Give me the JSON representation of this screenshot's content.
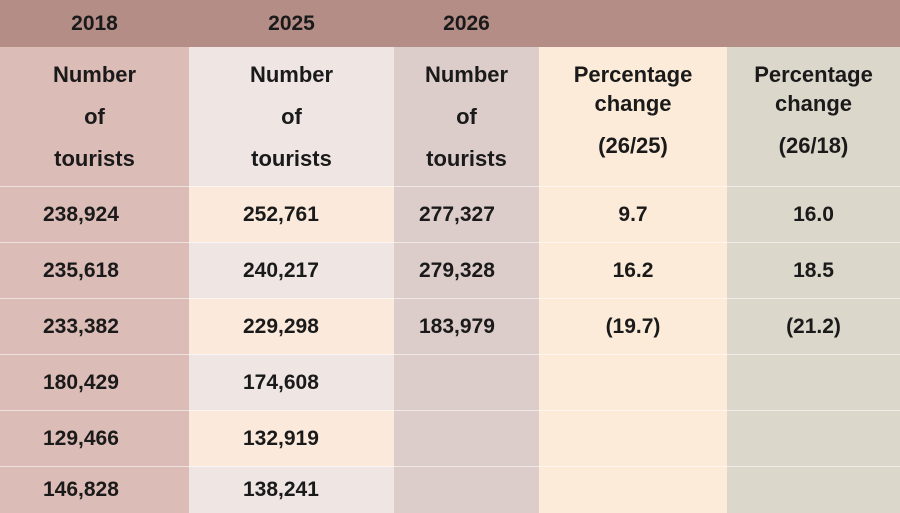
{
  "years": [
    "2018",
    "2025",
    "2026"
  ],
  "headers": {
    "tourists": [
      "Number",
      "of",
      "tourists"
    ],
    "pct1": [
      "Percentage",
      "change",
      "(26/25)"
    ],
    "pct2": [
      "Percentage",
      "change",
      "(26/18)"
    ]
  },
  "rows": [
    {
      "y2018": "238,924",
      "y2025": "252,761",
      "y2026": "277,327",
      "p2625": "9.7",
      "p2618": "16.0"
    },
    {
      "y2018": "235,618",
      "y2025": "240,217",
      "y2026": "279,328",
      "p2625": "16.2",
      "p2618": "18.5"
    },
    {
      "y2018": "233,382",
      "y2025": "229,298",
      "y2026": "183,979",
      "p2625": "(19.7)",
      "p2618": "(21.2)"
    },
    {
      "y2018": "180,429",
      "y2025": "174,608",
      "y2026": "",
      "p2625": "",
      "p2618": ""
    },
    {
      "y2018": "129,466",
      "y2025": "132,919",
      "y2026": "",
      "p2625": "",
      "p2618": ""
    },
    {
      "y2018": "146,828",
      "y2025": "138,241",
      "y2026": "",
      "p2625": "",
      "p2618": ""
    }
  ]
}
